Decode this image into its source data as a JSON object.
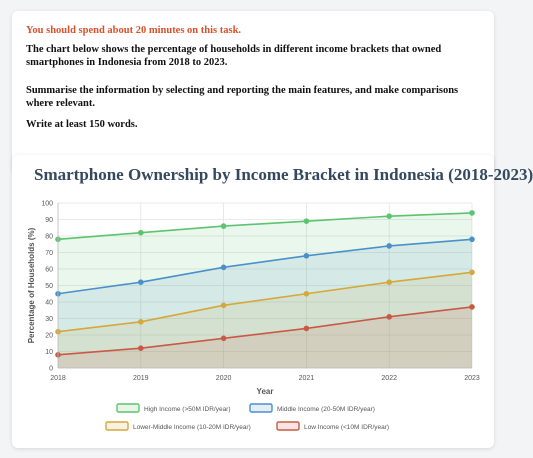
{
  "task": {
    "time_note": "You should spend about 20 minutes on this task.",
    "paragraph1": "The chart below shows the percentage of households in different income brackets that owned smartphones in Indonesia from 2018 to 2023.",
    "paragraph2": "Summarise the information by selecting and reporting the main features, and make comparisons where relevant.",
    "paragraph3": "Write at least 150 words."
  },
  "chart_data": {
    "type": "area",
    "title": "Smartphone Ownership by Income Bracket in Indonesia (2018-2023)",
    "xlabel": "Year",
    "ylabel": "Percentage of Households (%)",
    "x": [
      "2018",
      "2019",
      "2020",
      "2021",
      "2022",
      "2023"
    ],
    "ylim": [
      0,
      100
    ],
    "yticks": [
      0,
      10,
      20,
      30,
      40,
      50,
      60,
      70,
      80,
      90,
      100
    ],
    "grid": true,
    "legend_position": "bottom",
    "series": [
      {
        "name": "High Income (>50M IDR/year)",
        "values": [
          78,
          82,
          86,
          89,
          92,
          94
        ],
        "color": "#5cc46e"
      },
      {
        "name": "Middle Income (20-50M IDR/year)",
        "values": [
          45,
          52,
          61,
          68,
          74,
          78
        ],
        "color": "#4a90c9"
      },
      {
        "name": "Lower-Middle Income (10-20M IDR/year)",
        "values": [
          22,
          28,
          38,
          45,
          52,
          58
        ],
        "color": "#d4a83a"
      },
      {
        "name": "Low Income (<10M IDR/year)",
        "values": [
          8,
          12,
          18,
          24,
          31,
          37
        ],
        "color": "#c85a45"
      }
    ]
  }
}
